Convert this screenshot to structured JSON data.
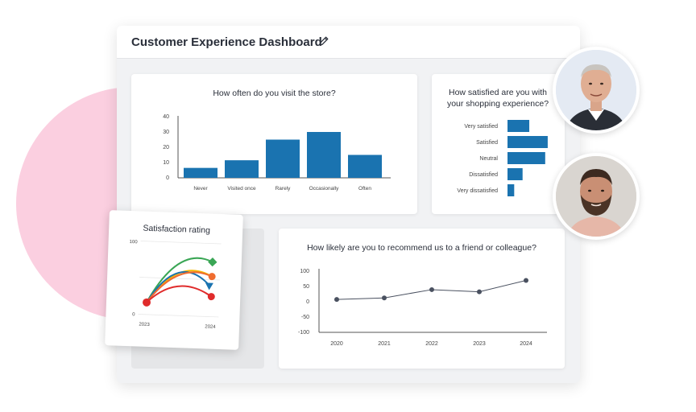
{
  "dashboard": {
    "title": "Customer Experience Dashboard",
    "edit_icon": "pencil-icon"
  },
  "visit_chart": {
    "title": "How often do you  visit the store?",
    "chart_data": {
      "type": "bar",
      "categories": [
        "Never",
        "Visited once",
        "Rarely",
        "Occasionally",
        "Often"
      ],
      "values": [
        6.5,
        11.5,
        25,
        30,
        15
      ],
      "yticks": [
        "40",
        "30",
        "20",
        "10",
        "0"
      ],
      "ylim": [
        0,
        40
      ]
    }
  },
  "satisfaction_chart": {
    "title_line1": "How satisfied are you with",
    "title_line2": "your shopping experience?",
    "chart_data": {
      "type": "bar",
      "orientation": "horizontal",
      "categories": [
        "Very satisfied",
        "Satisfied",
        "Neutral",
        "Dissatisfied",
        "Very dissatisfied"
      ],
      "values": [
        26,
        48,
        45,
        18,
        8
      ],
      "xlim": [
        0,
        50
      ]
    }
  },
  "recommend_chart": {
    "title": "How likely are you to recommend us to a friend or colleague?",
    "chart_data": {
      "type": "line",
      "x": [
        "2020",
        "2021",
        "2022",
        "2023",
        "2024"
      ],
      "values": [
        5,
        10,
        37,
        30,
        67
      ],
      "yticks": [
        "100",
        "50",
        "0",
        "-50",
        "-100"
      ],
      "ylim": [
        -100,
        100
      ]
    }
  },
  "rating_card": {
    "title": "Satisfaction rating",
    "y_top": "100",
    "y_bottom": "0",
    "x_start": "2023",
    "x_end": "2024"
  },
  "colors": {
    "bar": "#1a73b0",
    "line": "#4a5160",
    "pink": "#fbcfe0"
  },
  "avatars": [
    "avatar-man-gray-hair",
    "avatar-man-beard"
  ]
}
